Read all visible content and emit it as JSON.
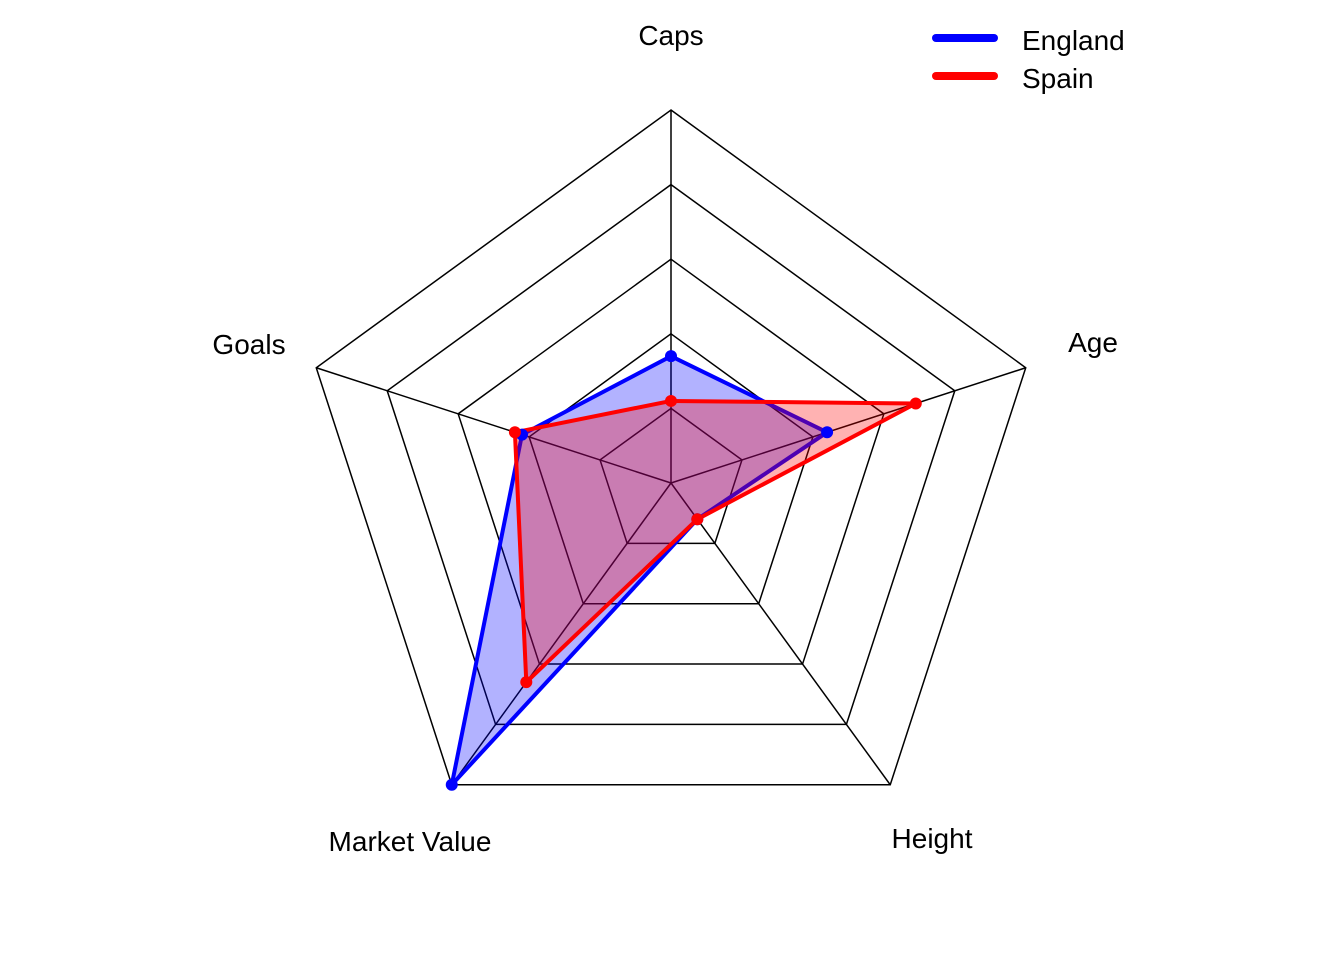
{
  "chart_data": {
    "type": "radar",
    "title": "",
    "axes": [
      "Caps",
      "Age",
      "Height",
      "Market Value",
      "Goals"
    ],
    "range": [
      0,
      5
    ],
    "levels": 5,
    "grid": true,
    "legend_position": "top-right",
    "series": [
      {
        "name": "England",
        "color": "#0000FF",
        "fill": "rgba(0,0,255,0.3)",
        "values": [
          1.7,
          2.2,
          0.6,
          5.0,
          2.1
        ]
      },
      {
        "name": "Spain",
        "color": "#FF0000",
        "fill": "rgba(255,0,0,0.3)",
        "values": [
          1.1,
          3.45,
          0.6,
          3.3,
          2.2
        ]
      }
    ]
  }
}
